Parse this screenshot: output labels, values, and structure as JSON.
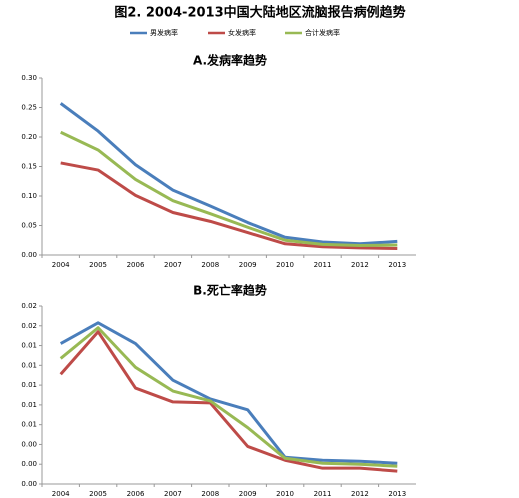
{
  "title": "图2. 2004-2013中国大陆地区流脑报告病例趋势",
  "chart_data": [
    {
      "type": "line",
      "title": "A.发病率趋势",
      "categories": [
        "2004",
        "2005",
        "2006",
        "2007",
        "2008",
        "2009",
        "2010",
        "2011",
        "2012",
        "2013"
      ],
      "series": [
        {
          "name": "男发病率",
          "color": "#4a7ebb",
          "values": [
            0.257,
            0.21,
            0.153,
            0.11,
            0.083,
            0.055,
            0.03,
            0.022,
            0.019,
            0.023
          ]
        },
        {
          "name": "女发病率",
          "color": "#be4b48",
          "values": [
            0.156,
            0.144,
            0.101,
            0.072,
            0.057,
            0.038,
            0.019,
            0.014,
            0.012,
            0.011
          ]
        },
        {
          "name": "合计发病率",
          "color": "#98b954",
          "values": [
            0.208,
            0.178,
            0.128,
            0.092,
            0.07,
            0.047,
            0.025,
            0.018,
            0.016,
            0.017
          ]
        }
      ],
      "ylim": [
        0,
        0.3
      ],
      "yticks": [
        {
          "value": 0,
          "label": "0.00"
        },
        {
          "value": 0.05,
          "label": "0.05"
        },
        {
          "value": 0.1,
          "label": "0.10"
        },
        {
          "value": 0.15,
          "label": "0.15"
        },
        {
          "value": 0.2,
          "label": "0.20"
        },
        {
          "value": 0.25,
          "label": "0.25"
        },
        {
          "value": 0.3,
          "label": "0.30"
        }
      ]
    },
    {
      "type": "line",
      "title": "B.死亡率趋势",
      "categories": [
        "2004",
        "2005",
        "2006",
        "2007",
        "2008",
        "2009",
        "2010",
        "2011",
        "2012",
        "2013"
      ],
      "series": [
        {
          "color": "#4a7ebb",
          "values": [
            0.0142,
            0.0163,
            0.0142,
            0.0105,
            0.0086,
            0.0075,
            0.0027,
            0.0024,
            0.0023,
            0.0021
          ]
        },
        {
          "color": "#be4b48",
          "values": [
            0.0111,
            0.0154,
            0.0097,
            0.0083,
            0.0082,
            0.0038,
            0.0024,
            0.0016,
            0.0016,
            0.0013
          ]
        },
        {
          "color": "#98b954",
          "values": [
            0.0127,
            0.0158,
            0.0118,
            0.0094,
            0.0084,
            0.0057,
            0.0026,
            0.0021,
            0.002,
            0.0018
          ]
        }
      ],
      "ylim": [
        0,
        0.018
      ],
      "yticks": [
        {
          "value": 0,
          "label": "0.00"
        },
        {
          "value": 0.002,
          "label": "0.00"
        },
        {
          "value": 0.004,
          "label": "0.00"
        },
        {
          "value": 0.006,
          "label": "0.01"
        },
        {
          "value": 0.008,
          "label": "0.01"
        },
        {
          "value": 0.01,
          "label": "0.01"
        },
        {
          "value": 0.012,
          "label": "0.01"
        },
        {
          "value": 0.014,
          "label": "0.01"
        },
        {
          "value": 0.016,
          "label": "0.02"
        },
        {
          "value": 0.018,
          "label": "0.02"
        }
      ]
    }
  ]
}
